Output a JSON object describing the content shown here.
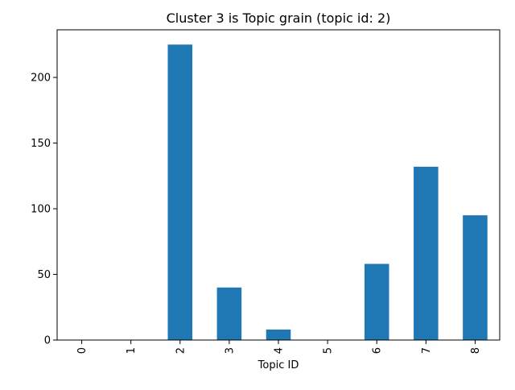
{
  "chart_data": {
    "type": "bar",
    "title": "Cluster 3 is Topic grain (topic id: 2)",
    "xlabel": "Topic ID",
    "ylabel": "",
    "categories": [
      "0",
      "1",
      "2",
      "3",
      "4",
      "5",
      "6",
      "7",
      "8"
    ],
    "values": [
      0,
      0,
      225,
      40,
      8,
      0,
      58,
      132,
      95
    ],
    "ylim": [
      0,
      236.25
    ],
    "yticks": [
      0,
      50,
      100,
      150,
      200
    ],
    "grid": false,
    "legend": "none",
    "bar_color": "#1f77b4",
    "xtick_rotation": "vertical"
  }
}
